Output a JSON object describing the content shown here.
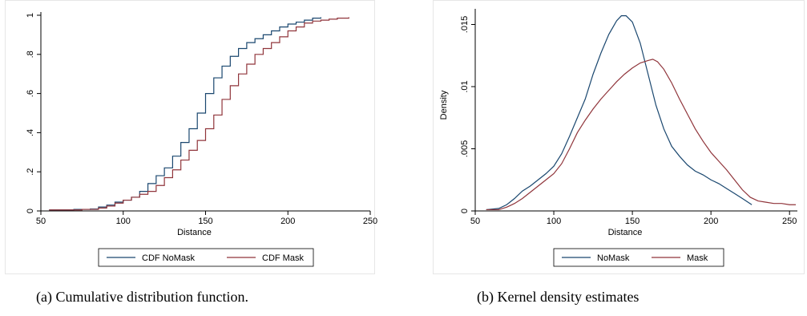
{
  "captions": {
    "a": "(a) Cumulative distribution function.",
    "b": "(b) Kernel density estimates"
  },
  "colors": {
    "navy": "#1a476f",
    "maroon": "#90353b"
  },
  "chart_data": [
    {
      "type": "line",
      "title": "",
      "xlabel": "Distance",
      "ylabel": "",
      "xlim": [
        50,
        250
      ],
      "ylim": [
        0,
        1
      ],
      "xticks": [
        50,
        100,
        150,
        200,
        250
      ],
      "xtick_labels": [
        "50",
        "100",
        "150",
        "200",
        "250"
      ],
      "yticks": [
        0,
        0.2,
        0.4,
        0.6,
        0.8,
        1
      ],
      "ytick_labels": [
        "0",
        ".2",
        ".4",
        ".6",
        ".8",
        "1"
      ],
      "grid": false,
      "legend_position": "bottom",
      "series": [
        {
          "name": "CDF NoMask",
          "color": "#1a476f",
          "x": [
            55,
            70,
            80,
            85,
            90,
            95,
            100,
            105,
            110,
            115,
            120,
            125,
            130,
            135,
            140,
            145,
            150,
            155,
            160,
            165,
            170,
            175,
            180,
            185,
            190,
            195,
            200,
            205,
            210,
            215,
            220
          ],
          "y": [
            0.005,
            0.008,
            0.01,
            0.02,
            0.03,
            0.045,
            0.055,
            0.07,
            0.1,
            0.14,
            0.18,
            0.22,
            0.28,
            0.35,
            0.42,
            0.5,
            0.6,
            0.68,
            0.74,
            0.79,
            0.83,
            0.86,
            0.88,
            0.9,
            0.92,
            0.94,
            0.955,
            0.965,
            0.975,
            0.985,
            0.99
          ]
        },
        {
          "name": "CDF Mask",
          "color": "#90353b",
          "x": [
            55,
            75,
            85,
            90,
            95,
            100,
            105,
            110,
            115,
            120,
            125,
            130,
            135,
            140,
            145,
            150,
            155,
            160,
            165,
            170,
            175,
            180,
            185,
            190,
            195,
            200,
            205,
            210,
            215,
            220,
            225,
            230,
            237
          ],
          "y": [
            0.005,
            0.008,
            0.015,
            0.025,
            0.04,
            0.055,
            0.07,
            0.085,
            0.1,
            0.13,
            0.17,
            0.21,
            0.26,
            0.31,
            0.36,
            0.42,
            0.49,
            0.57,
            0.64,
            0.7,
            0.75,
            0.8,
            0.83,
            0.86,
            0.89,
            0.92,
            0.94,
            0.96,
            0.97,
            0.975,
            0.98,
            0.985,
            0.99
          ]
        }
      ]
    },
    {
      "type": "line",
      "title": "",
      "xlabel": "Distance",
      "ylabel": "Density",
      "xlim": [
        50,
        255
      ],
      "ylim": [
        0,
        0.016
      ],
      "xticks": [
        50,
        100,
        150,
        200,
        250
      ],
      "xtick_labels": [
        "50",
        "100",
        "150",
        "200",
        "250"
      ],
      "yticks": [
        0,
        0.005,
        0.01,
        0.015
      ],
      "ytick_labels": [
        "0",
        ".005",
        ".01",
        ".015"
      ],
      "grid": false,
      "legend_position": "bottom",
      "series": [
        {
          "name": "NoMask",
          "color": "#1a476f",
          "x": [
            57,
            65,
            70,
            75,
            80,
            85,
            90,
            95,
            100,
            105,
            110,
            115,
            120,
            125,
            130,
            135,
            140,
            143,
            146,
            150,
            155,
            160,
            165,
            170,
            175,
            180,
            185,
            190,
            195,
            200,
            205,
            210,
            215,
            220,
            226
          ],
          "y": [
            0.0001,
            0.0002,
            0.0005,
            0.001,
            0.0016,
            0.002,
            0.0025,
            0.003,
            0.0036,
            0.0046,
            0.006,
            0.0075,
            0.009,
            0.011,
            0.0127,
            0.0142,
            0.0153,
            0.0157,
            0.0157,
            0.0152,
            0.0135,
            0.011,
            0.0085,
            0.0066,
            0.0052,
            0.0044,
            0.0037,
            0.0032,
            0.0029,
            0.0025,
            0.0022,
            0.0018,
            0.0014,
            0.001,
            0.0005
          ]
        },
        {
          "name": "Mask",
          "color": "#90353b",
          "x": [
            57,
            65,
            70,
            75,
            80,
            85,
            90,
            95,
            100,
            105,
            110,
            115,
            120,
            125,
            130,
            135,
            140,
            145,
            150,
            155,
            160,
            163,
            166,
            170,
            175,
            180,
            185,
            190,
            195,
            200,
            205,
            210,
            215,
            220,
            225,
            230,
            235,
            240,
            245,
            250,
            254
          ],
          "y": [
            0.0001,
            0.0001,
            0.0003,
            0.0006,
            0.001,
            0.0015,
            0.002,
            0.0025,
            0.003,
            0.0038,
            0.005,
            0.0063,
            0.0073,
            0.0082,
            0.009,
            0.0097,
            0.0104,
            0.011,
            0.0115,
            0.0119,
            0.0121,
            0.0122,
            0.012,
            0.0114,
            0.0103,
            0.009,
            0.0078,
            0.0066,
            0.0056,
            0.0047,
            0.004,
            0.0033,
            0.0025,
            0.0017,
            0.0011,
            0.0008,
            0.0007,
            0.0006,
            0.0006,
            0.0005,
            0.0005
          ]
        }
      ]
    }
  ]
}
